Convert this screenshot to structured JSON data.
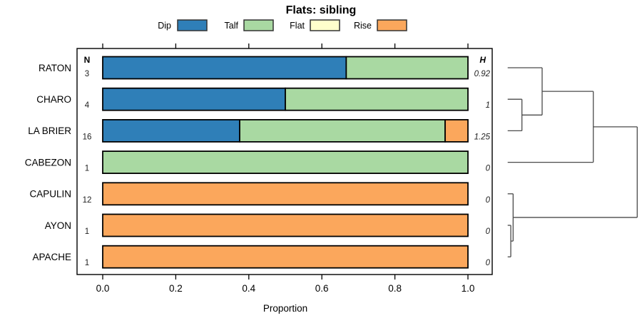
{
  "chart_data": {
    "type": "bar",
    "orientation": "horizontal",
    "stacked": true,
    "title": "Flats: sibling",
    "xlabel": "Proportion",
    "xlim": [
      0,
      1
    ],
    "xtick_labels": [
      "0.0",
      "0.2",
      "0.4",
      "0.6",
      "0.8",
      "1.0"
    ],
    "xtick_values": [
      0,
      0.2,
      0.4,
      0.6,
      0.8,
      1
    ],
    "grid": false,
    "legend_position": "top",
    "categories": [
      "RATON",
      "CHARO",
      "LA BRIER",
      "CABEZON",
      "CAPULIN",
      "AYON",
      "APACHE"
    ],
    "columns": {
      "n_header": "N",
      "h_header": "H"
    },
    "n_values": [
      "3",
      "4",
      "16",
      "1",
      "12",
      "1",
      "1"
    ],
    "h_values": [
      "0.92",
      "1",
      "1.25",
      "0",
      "0",
      "0",
      "0"
    ],
    "series": [
      {
        "name": "Dip",
        "color": "#2f7fb8",
        "values": [
          0.6667,
          0.5,
          0.375,
          0,
          0,
          0,
          0
        ]
      },
      {
        "name": "Talf",
        "color": "#a9d9a2",
        "values": [
          0.3333,
          0.5,
          0.5625,
          1,
          0,
          0,
          0
        ]
      },
      {
        "name": "Flat",
        "color": "#ffffcc",
        "values": [
          0,
          0,
          0,
          0,
          0,
          0,
          0
        ]
      },
      {
        "name": "Rise",
        "color": "#fba75c",
        "values": [
          0,
          0,
          0.0625,
          0,
          1,
          1,
          1
        ]
      }
    ],
    "dendrogram": {
      "leaves": [
        "RATON",
        "CHARO",
        "LA BRIER",
        "CABEZON",
        "CAPULIN",
        "AYON",
        "APACHE"
      ],
      "merges": [
        {
          "children": [
            "AYON",
            "APACHE"
          ],
          "height": 0.024
        },
        {
          "children": [
            "CAPULIN",
            "m0"
          ],
          "height": 0.042
        },
        {
          "children": [
            "CHARO",
            "LA BRIER"
          ],
          "height": 0.11
        },
        {
          "children": [
            "RATON",
            "m2"
          ],
          "height": 0.266
        },
        {
          "children": [
            "m3",
            "CABEZON"
          ],
          "height": 0.661
        },
        {
          "children": [
            "m4",
            "m1"
          ],
          "height": 1.0
        }
      ]
    },
    "colors": {
      "bar_border": "#000000",
      "box_border": "#000000",
      "dendrogram_line": "#4a4a4a",
      "text": "#000000",
      "value_text": "#222222"
    }
  }
}
